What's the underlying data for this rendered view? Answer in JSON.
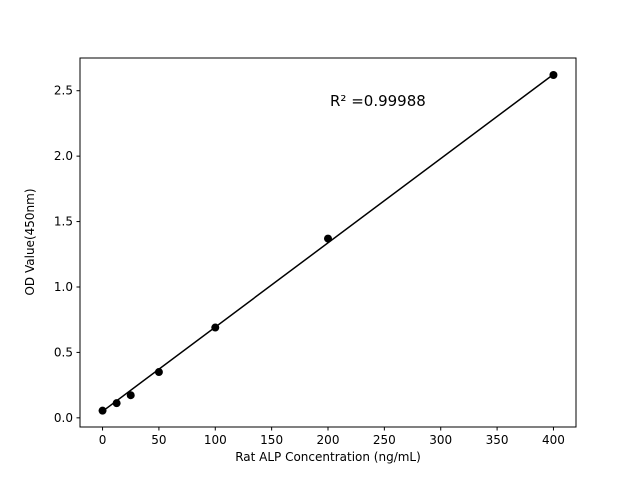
{
  "chart_data": {
    "type": "scatter",
    "title": "",
    "xlabel": "Rat ALP Concentration (ng/mL)",
    "ylabel": "OD Value(450nm)",
    "annotation": "R² =0.99988",
    "points": {
      "x": [
        0,
        12.5,
        25,
        50,
        100,
        200,
        400
      ],
      "y": [
        0.055,
        0.112,
        0.173,
        0.35,
        0.69,
        1.37,
        2.62
      ]
    },
    "fit_line": {
      "x": [
        0,
        400
      ],
      "y": [
        0.05,
        2.625
      ]
    },
    "xlim": [
      -20,
      420
    ],
    "ylim": [
      -0.07,
      2.75
    ],
    "x_ticks": [
      0,
      50,
      100,
      150,
      200,
      250,
      300,
      350,
      400
    ],
    "y_ticks": [
      0.0,
      0.5,
      1.0,
      1.5,
      2.0,
      2.5
    ],
    "legend": null,
    "grid": false,
    "colors": {
      "marker": "#000000",
      "line": "#000000",
      "text": "#000000",
      "background": "#ffffff"
    }
  }
}
